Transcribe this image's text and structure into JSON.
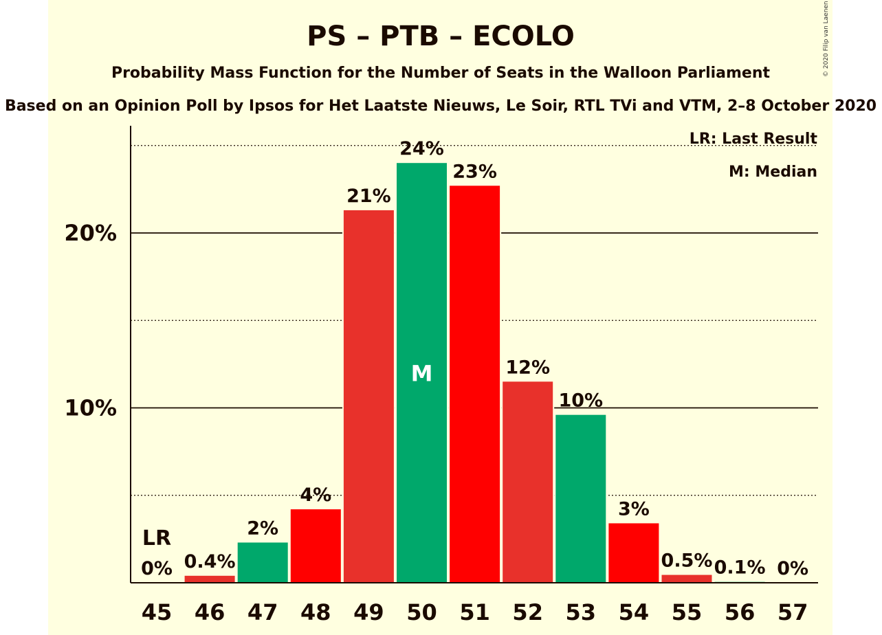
{
  "copyright": "© 2020 Filip van Laenen",
  "legend": {
    "last_result": "LR: Last Result",
    "median": "M: Median"
  },
  "colors": {
    "background": "#ffffe0",
    "red": "#e8312b",
    "bright_red": "#ff0000",
    "green": "#00a86b",
    "text": "#1a0a00"
  },
  "chart_data": {
    "type": "bar",
    "title": "PS – PTB – ECOLO",
    "subtitle": "Probability Mass Function for the Number of Seats in the Walloon Parliament",
    "subtitle2": "Based on an Opinion Poll by Ipsos for Het Laatste Nieuws, Le Soir, RTL TVi and VTM, 2–8 October 2020",
    "xlabel": "",
    "ylabel": "",
    "ylim": [
      0,
      26
    ],
    "yticks": [
      {
        "value": 10,
        "label": "10%"
      },
      {
        "value": 20,
        "label": "20%"
      }
    ],
    "minor_gridlines": [
      5,
      15,
      25
    ],
    "categories": [
      "45",
      "46",
      "47",
      "48",
      "49",
      "50",
      "51",
      "52",
      "53",
      "54",
      "55",
      "56",
      "57"
    ],
    "values": [
      0,
      0.4,
      2.3,
      4.2,
      21.3,
      24.0,
      22.7,
      11.5,
      9.6,
      3.4,
      0.45,
      0.05,
      0
    ],
    "labels": [
      "0%",
      "0.4%",
      "2%",
      "4%",
      "21%",
      "24%",
      "23%",
      "12%",
      "10%",
      "3%",
      "0.5%",
      "0.1%",
      "0%"
    ],
    "bar_colors": [
      "#e8312b",
      "#e8312b",
      "#00a86b",
      "#ff0000",
      "#e8312b",
      "#00a86b",
      "#ff0000",
      "#e8312b",
      "#00a86b",
      "#ff0000",
      "#e8312b",
      "#00a86b",
      "#ff0000"
    ],
    "last_result": {
      "category": "45",
      "label": "LR"
    },
    "median": {
      "category": "50",
      "label": "M"
    }
  }
}
